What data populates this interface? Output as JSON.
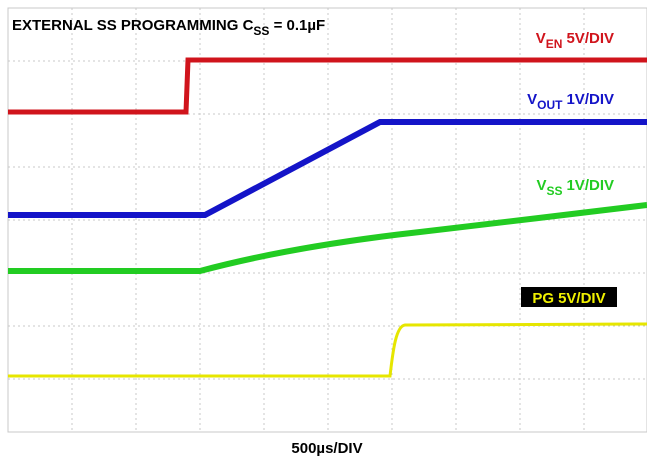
{
  "title": {
    "main": "EXTERNAL SS PROGRAMMING C",
    "sub": "SS",
    "rest": " = 0.1µF"
  },
  "traces": [
    {
      "main": "V",
      "sub": "EN",
      "scale": "5V/DIV"
    },
    {
      "main": "V",
      "sub": "OUT",
      "scale": "1V/DIV"
    },
    {
      "main": "V",
      "sub": "SS",
      "scale": "1V/DIV"
    },
    {
      "main": "PG",
      "scale": "5V/DIV"
    }
  ],
  "timebase": "500µs/DIV"
}
